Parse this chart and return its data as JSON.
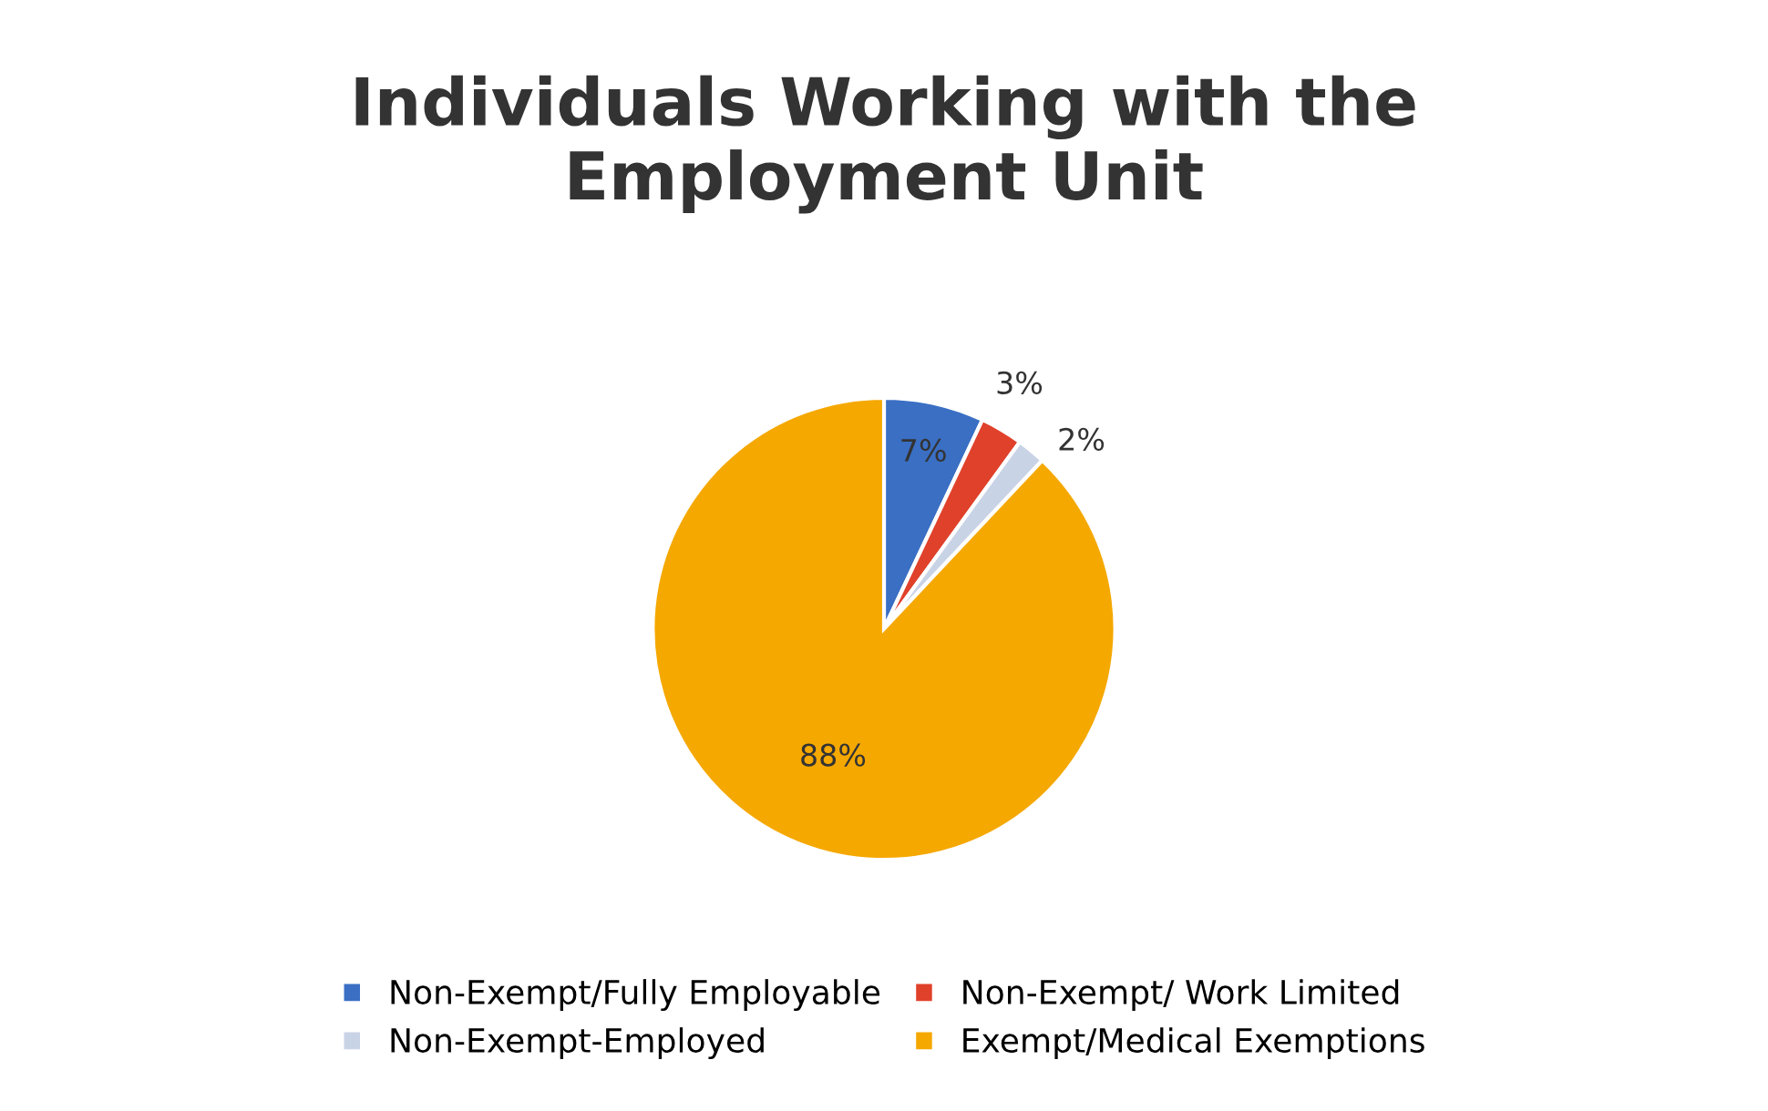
{
  "chart_data": {
    "type": "pie",
    "title": "Individuals Working with the\nEmployment Unit",
    "categories": [
      "Non-Exempt/Fully Employable",
      "Non-Exempt/ Work Limited",
      "Non-Exempt-Employed",
      "Exempt/Medical Exemptions"
    ],
    "values": [
      7,
      3,
      2,
      88
    ],
    "colors": [
      "#3a6fc4",
      "#e0412b",
      "#c9d3e6",
      "#f5a800"
    ],
    "value_labels": [
      "7%",
      "3%",
      "2%",
      "88%"
    ],
    "legend": "bottom"
  }
}
